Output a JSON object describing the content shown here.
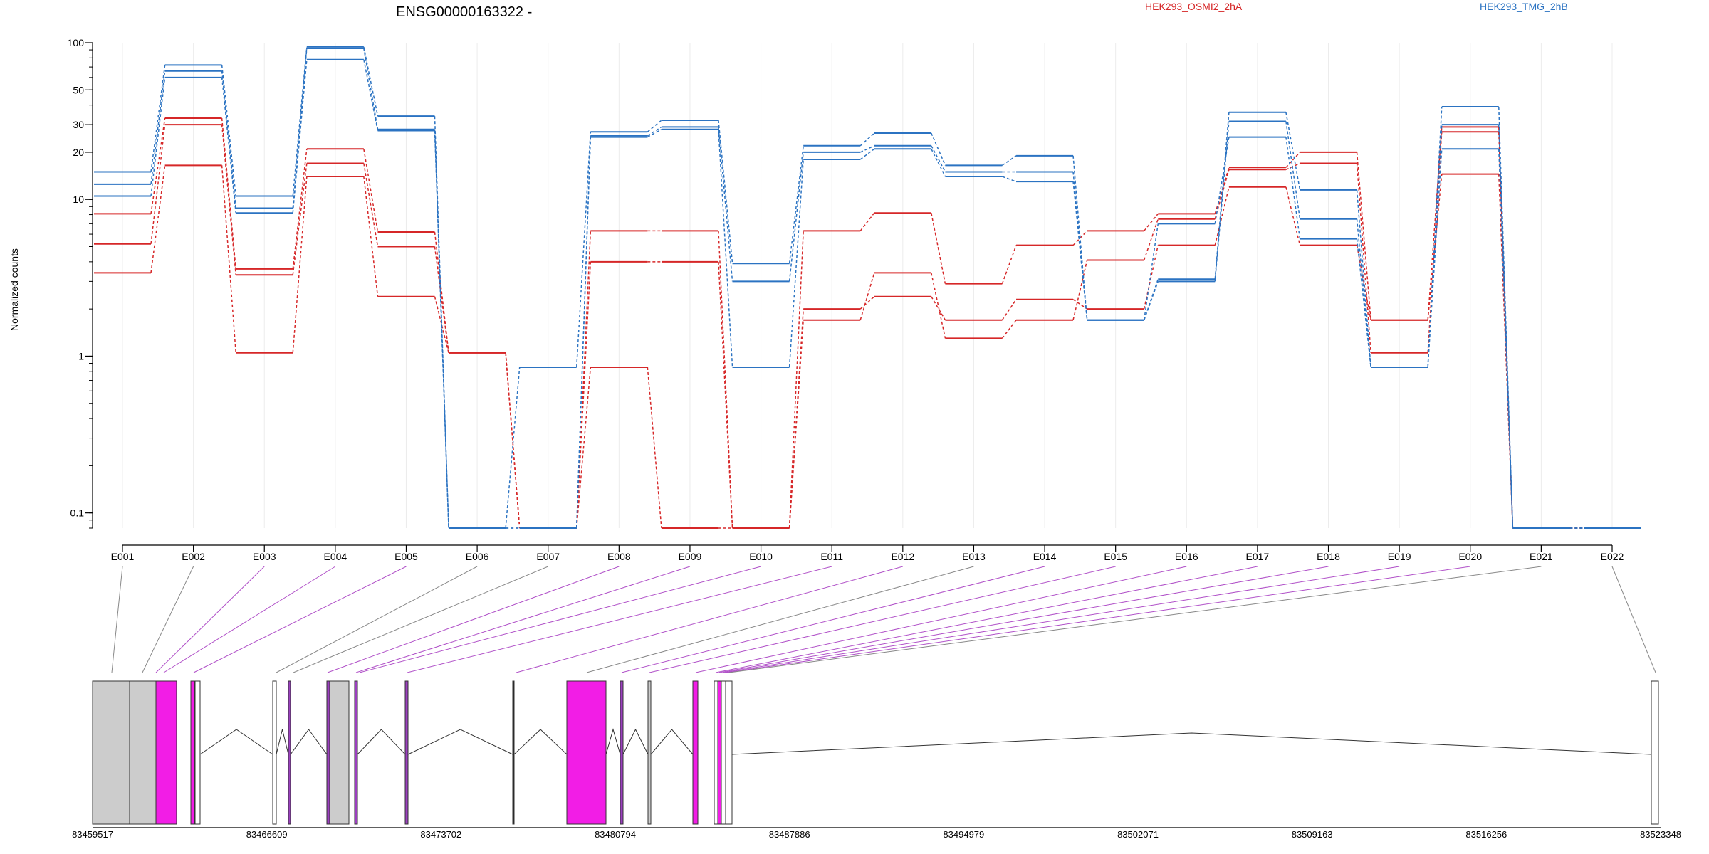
{
  "chart_data": {
    "type": "line",
    "title": "ENSG00000163322 -",
    "xlabel": "",
    "ylabel": "Normalized counts",
    "y_scale": "log",
    "ylim": [
      0.08,
      100
    ],
    "y_ticks": [
      0.1,
      1,
      10,
      20,
      30,
      50,
      100
    ],
    "y_tick_labels": [
      "0.1",
      "1",
      "10",
      "20",
      "30",
      "50",
      "100"
    ],
    "grid": "vertical, light",
    "legend_position": "top",
    "categories": [
      "E001",
      "E002",
      "E003",
      "E004",
      "E005",
      "E006",
      "E007",
      "E008",
      "E009",
      "E010",
      "E011",
      "E012",
      "E013",
      "E014",
      "E015",
      "E016",
      "E017",
      "E018",
      "E019",
      "E020",
      "E021",
      "E022"
    ],
    "legend": [
      {
        "label": "HEK293_OSMI2_2hA",
        "color": "#d62728"
      },
      {
        "label": "HEK293_TMG_2hB",
        "color": "#2b73c2"
      }
    ],
    "series": [
      {
        "group": "HEK293_OSMI2_2hA",
        "color": "#d62728",
        "values": [
          8.1,
          33,
          3.6,
          21,
          6.2,
          1.05,
          0.08,
          6.3,
          6.3,
          0.08,
          6.3,
          8.2,
          2.9,
          5.1,
          6.3,
          8.1,
          16,
          20,
          1.7,
          29,
          0.08,
          0.08
        ]
      },
      {
        "group": "HEK293_OSMI2_2hA",
        "color": "#d62728",
        "values": [
          5.2,
          30,
          3.3,
          17,
          5.0,
          1.05,
          0.08,
          4.0,
          4.0,
          0.08,
          1.7,
          3.4,
          1.3,
          1.7,
          4.1,
          7.5,
          15.5,
          17,
          1.05,
          27,
          0.08,
          0.08
        ]
      },
      {
        "group": "HEK293_OSMI2_2hA",
        "color": "#d62728",
        "values": [
          3.4,
          16.5,
          1.05,
          14,
          2.4,
          1.05,
          0.08,
          0.85,
          0.08,
          0.08,
          2.0,
          2.4,
          1.7,
          2.3,
          2.0,
          5.1,
          12,
          5.1,
          1.7,
          14.5,
          0.08,
          0.08
        ]
      },
      {
        "group": "HEK293_TMG_2hB",
        "color": "#2b73c2",
        "values": [
          15,
          72,
          10.5,
          94,
          34,
          0.08,
          0.85,
          27,
          32,
          3.9,
          22,
          26.5,
          16.5,
          19,
          1.7,
          3.1,
          36,
          11.5,
          0.85,
          39,
          0.08,
          0.08
        ]
      },
      {
        "group": "HEK293_TMG_2hB",
        "color": "#2b73c2",
        "values": [
          12.5,
          66,
          8.8,
          92,
          28,
          0.08,
          0.08,
          25.5,
          29,
          3.0,
          20,
          22,
          15,
          15,
          1.7,
          3.0,
          31.5,
          7.5,
          0.85,
          30,
          0.08,
          0.08
        ]
      },
      {
        "group": "HEK293_TMG_2hB",
        "color": "#2b73c2",
        "values": [
          10.5,
          60,
          8.2,
          78,
          27.5,
          0.08,
          0.08,
          25,
          28,
          0.85,
          18,
          21,
          14,
          13,
          1.7,
          7.0,
          25,
          5.6,
          0.85,
          21,
          0.08,
          0.08
        ]
      }
    ],
    "gene_model": {
      "genomic_ticks": [
        "83459517",
        "83466609",
        "83473702",
        "83480794",
        "83487886",
        "83494979",
        "83502071",
        "83509163",
        "83516256",
        "83523348"
      ],
      "exon_link_colors": [
        "gray",
        "gray",
        "purple",
        "purple",
        "purple",
        "gray",
        "gray",
        "purple",
        "purple",
        "purple",
        "purple",
        "purple",
        "gray",
        "purple",
        "purple",
        "purple",
        "purple",
        "purple",
        "purple",
        "purple",
        "gray",
        "gray"
      ]
    }
  }
}
